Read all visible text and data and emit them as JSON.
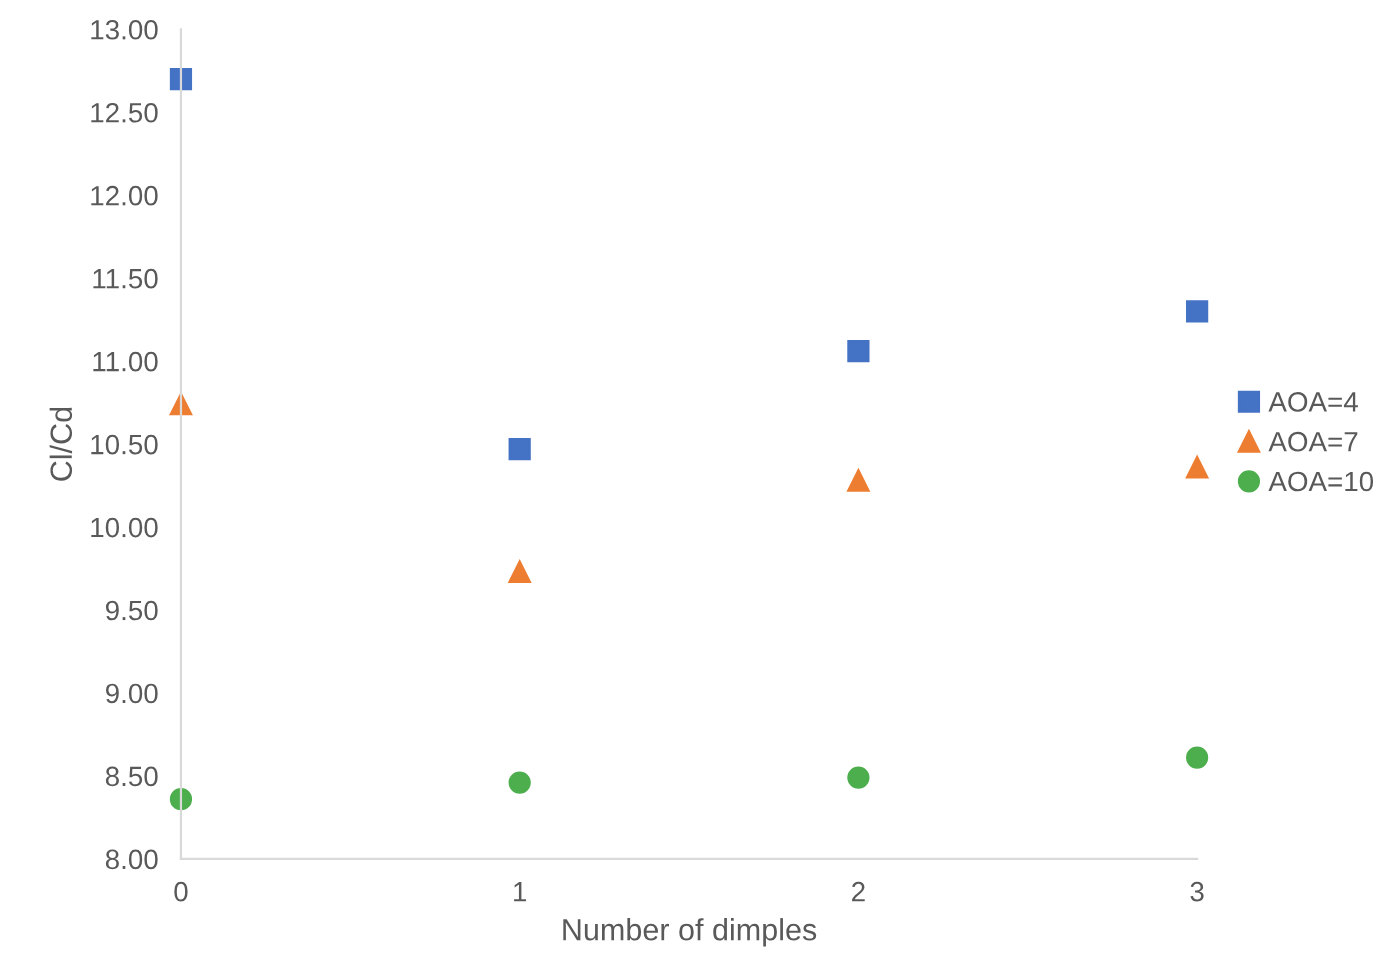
{
  "chart_data": {
    "type": "scatter",
    "xlabel": "Number of dimples",
    "ylabel": "Cl/Cd",
    "x": [
      0,
      1,
      2,
      3
    ],
    "series": [
      {
        "name": "AOA=4",
        "color": "#4472c4",
        "marker": "square",
        "values": [
          12.7,
          10.47,
          11.06,
          11.3
        ]
      },
      {
        "name": "AOA=7",
        "color": "#ed7d31",
        "marker": "triangle",
        "values": [
          10.74,
          9.73,
          10.28,
          10.36
        ]
      },
      {
        "name": "AOA=10",
        "color": "#4cae4c",
        "marker": "circle",
        "values": [
          8.36,
          8.46,
          8.49,
          8.61
        ]
      }
    ],
    "xlim": [
      0,
      3
    ],
    "xticks": [
      0,
      1,
      2,
      3
    ],
    "ylim": [
      8,
      13
    ],
    "yticks": [
      {
        "value": 8,
        "label": "8.00"
      },
      {
        "value": 8.5,
        "label": "8.50"
      },
      {
        "value": 9,
        "label": "9.00"
      },
      {
        "value": 9.5,
        "label": "9.50"
      },
      {
        "value": 10,
        "label": "10.00"
      },
      {
        "value": 10.5,
        "label": "10.50"
      },
      {
        "value": 11,
        "label": "11.00"
      },
      {
        "value": 11.5,
        "label": "11.50"
      },
      {
        "value": 12,
        "label": "12.00"
      },
      {
        "value": 12.5,
        "label": "12.50"
      },
      {
        "value": 13,
        "label": "13.00"
      }
    ],
    "grid": false,
    "legend": "right"
  }
}
